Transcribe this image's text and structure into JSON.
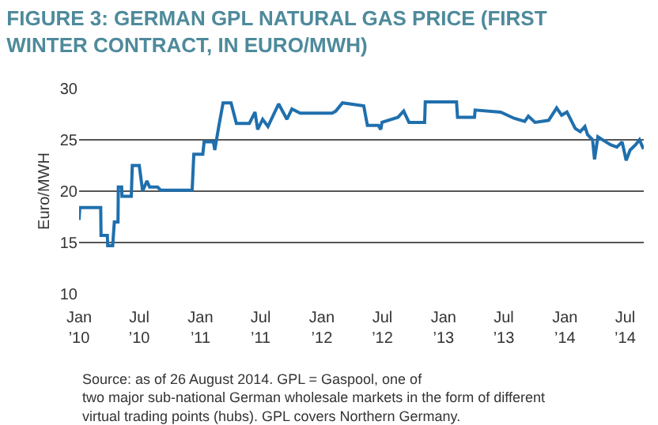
{
  "chart_data": {
    "type": "line",
    "title": "FIGURE 3: GERMAN GPL NATURAL GAS PRICE (FIRST\nWINTER CONTRACT, IN EURO/MWH)",
    "ylabel": "Euro/MWH",
    "x": [
      "2010-01-01",
      "2010-01-03",
      "2010-03-07",
      "2010-03-08",
      "2010-03-27",
      "2010-03-28",
      "2010-04-12",
      "2010-04-17",
      "2010-04-28",
      "2010-04-29",
      "2010-05-09",
      "2010-05-10",
      "2010-06-07",
      "2010-06-10",
      "2010-07-01",
      "2010-07-11",
      "2010-07-24",
      "2010-08-01",
      "2010-08-25",
      "2010-09-03",
      "2010-12-07",
      "2010-12-12",
      "2011-01-08",
      "2011-01-12",
      "2011-02-09",
      "2011-02-13",
      "2011-02-25",
      "2011-03-10",
      "2011-04-03",
      "2011-04-19",
      "2011-05-28",
      "2011-06-14",
      "2011-06-22",
      "2011-07-07",
      "2011-07-23",
      "2011-08-24",
      "2011-09-18",
      "2011-10-03",
      "2011-10-28",
      "2012-02-01",
      "2012-02-12",
      "2012-03-03",
      "2012-05-06",
      "2012-05-17",
      "2012-06-19",
      "2012-06-26",
      "2012-06-30",
      "2012-08-17",
      "2012-09-03",
      "2012-09-19",
      "2012-11-05",
      "2012-11-07",
      "2013-02-09",
      "2013-02-12",
      "2013-04-04",
      "2013-04-06",
      "2013-06-22",
      "2013-08-01",
      "2013-09-02",
      "2013-09-13",
      "2013-10-03",
      "2013-11-13",
      "2013-12-07",
      "2013-12-22",
      "2014-01-07",
      "2014-02-01",
      "2014-02-16",
      "2014-03-02",
      "2014-03-10",
      "2014-03-25",
      "2014-03-31",
      "2014-04-10",
      "2014-05-04",
      "2014-05-19",
      "2014-06-06",
      "2014-06-22",
      "2014-07-04",
      "2014-07-16",
      "2014-08-01",
      "2014-08-13",
      "2014-08-25"
    ],
    "series": [
      {
        "color": "#1f6fad",
        "values": [
          17.2,
          18.4,
          18.4,
          15.7,
          15.7,
          14.7,
          14.7,
          17.0,
          17.0,
          20.4,
          20.4,
          19.5,
          19.5,
          22.5,
          22.5,
          20.0,
          21.0,
          20.4,
          20.4,
          20.1,
          20.1,
          23.6,
          23.6,
          24.8,
          24.8,
          24.0,
          26.3,
          28.6,
          28.6,
          26.6,
          26.6,
          27.7,
          26.0,
          27.0,
          26.3,
          28.5,
          27.0,
          28.0,
          27.6,
          27.6,
          27.8,
          28.6,
          28.3,
          26.4,
          26.4,
          26.0,
          26.7,
          27.2,
          27.8,
          26.7,
          26.7,
          28.7,
          28.7,
          27.2,
          27.2,
          27.9,
          27.7,
          27.1,
          26.8,
          27.3,
          26.7,
          26.9,
          28.1,
          27.4,
          27.7,
          26.1,
          25.8,
          26.3,
          25.5,
          25.0,
          23.1,
          25.3,
          24.8,
          24.5,
          24.3,
          24.8,
          23.0,
          24.0,
          24.5,
          25.0,
          24.1
        ]
      }
    ],
    "xlim": [
      "2010-01-01",
      "2014-08-26"
    ],
    "xticks": [
      {
        "value": "2010-01-01",
        "label": "Jan\n’10"
      },
      {
        "value": "2010-07-01",
        "label": "Jul\n’10"
      },
      {
        "value": "2011-01-01",
        "label": "Jan\n’11"
      },
      {
        "value": "2011-07-01",
        "label": "Jul\n’11"
      },
      {
        "value": "2012-01-01",
        "label": "Jan\n’12"
      },
      {
        "value": "2012-07-01",
        "label": "Jul\n’12"
      },
      {
        "value": "2013-01-01",
        "label": "Jan\n’13"
      },
      {
        "value": "2013-07-01",
        "label": "Jul\n’13"
      },
      {
        "value": "2014-01-01",
        "label": "Jan\n’14"
      },
      {
        "value": "2014-07-01",
        "label": "Jul\n’14"
      }
    ],
    "ylim": [
      10,
      30
    ],
    "yticks": [
      10,
      15,
      20,
      25,
      30
    ],
    "grid": "y",
    "legend": false,
    "marker": "none",
    "line_style": "solid",
    "annotations": [
      "Source: as of 26 August 2014. GPL = Gaspool, one of\ntwo major sub-national German wholesale markets in the form of different\nvirtual trading points (hubs). GPL covers Northern Germany."
    ]
  }
}
